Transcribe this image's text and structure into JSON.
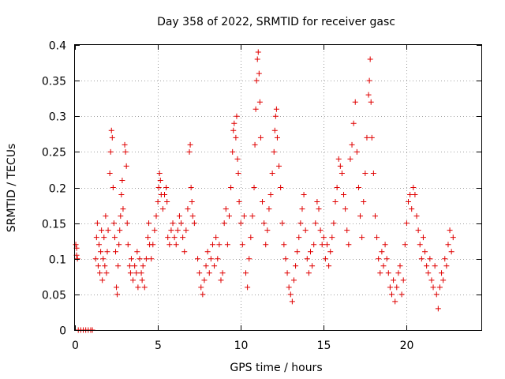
{
  "chart_data": {
    "type": "scatter",
    "title": "Day 358 of 2022, SRMTID for receiver gasc",
    "xlabel": "GPS time / hours",
    "ylabel": "SRMTID / TECUs",
    "xlim": [
      0,
      24.5
    ],
    "ylim": [
      0,
      0.4
    ],
    "xticks": [
      0,
      5,
      10,
      15,
      20
    ],
    "yticks": [
      0,
      0.05,
      0.1,
      0.15,
      0.2,
      0.25,
      0.3,
      0.35,
      0.4
    ],
    "xtick_labels": [
      "0",
      "5",
      "10",
      "15",
      "20"
    ],
    "ytick_labels": [
      "0",
      "0.05",
      "0.1",
      "0.15",
      "0.2",
      "0.25",
      "0.3",
      "0.35",
      "0.4"
    ],
    "grid": true,
    "marker": "+",
    "color": "#e00000",
    "series": [
      {
        "name": "SRMTID",
        "points": [
          [
            0.05,
            0.12
          ],
          [
            0.1,
            0.105
          ],
          [
            0.1,
            0.115
          ],
          [
            0.15,
            0.1
          ],
          [
            0.2,
            0.0
          ],
          [
            0.35,
            0.0
          ],
          [
            0.5,
            0.0
          ],
          [
            0.65,
            0.0
          ],
          [
            0.8,
            0.0
          ],
          [
            0.95,
            0.0
          ],
          [
            1.05,
            0.0
          ],
          [
            1.25,
            0.1
          ],
          [
            1.3,
            0.13
          ],
          [
            1.35,
            0.15
          ],
          [
            1.4,
            0.09
          ],
          [
            1.45,
            0.12
          ],
          [
            1.5,
            0.08
          ],
          [
            1.55,
            0.11
          ],
          [
            1.6,
            0.14
          ],
          [
            1.65,
            0.07
          ],
          [
            1.7,
            0.1
          ],
          [
            1.75,
            0.13
          ],
          [
            1.8,
            0.09
          ],
          [
            1.85,
            0.16
          ],
          [
            1.9,
            0.08
          ],
          [
            1.95,
            0.11
          ],
          [
            2.0,
            0.14
          ],
          [
            2.1,
            0.22
          ],
          [
            2.15,
            0.25
          ],
          [
            2.2,
            0.28
          ],
          [
            2.25,
            0.27
          ],
          [
            2.3,
            0.2
          ],
          [
            2.35,
            0.15
          ],
          [
            2.4,
            0.13
          ],
          [
            2.45,
            0.11
          ],
          [
            2.5,
            0.06
          ],
          [
            2.55,
            0.05
          ],
          [
            2.6,
            0.09
          ],
          [
            2.65,
            0.12
          ],
          [
            2.7,
            0.14
          ],
          [
            2.75,
            0.16
          ],
          [
            2.8,
            0.19
          ],
          [
            2.85,
            0.21
          ],
          [
            2.9,
            0.17
          ],
          [
            3.0,
            0.26
          ],
          [
            3.05,
            0.25
          ],
          [
            3.1,
            0.23
          ],
          [
            3.15,
            0.15
          ],
          [
            3.2,
            0.12
          ],
          [
            3.3,
            0.09
          ],
          [
            3.35,
            0.08
          ],
          [
            3.4,
            0.1
          ],
          [
            3.5,
            0.07
          ],
          [
            3.6,
            0.09
          ],
          [
            3.7,
            0.08
          ],
          [
            3.75,
            0.11
          ],
          [
            3.8,
            0.06
          ],
          [
            3.9,
            0.1
          ],
          [
            4.0,
            0.08
          ],
          [
            4.05,
            0.07
          ],
          [
            4.1,
            0.09
          ],
          [
            4.2,
            0.06
          ],
          [
            4.3,
            0.1
          ],
          [
            4.4,
            0.13
          ],
          [
            4.45,
            0.15
          ],
          [
            4.5,
            0.12
          ],
          [
            4.6,
            0.1
          ],
          [
            4.7,
            0.12
          ],
          [
            4.8,
            0.14
          ],
          [
            4.9,
            0.16
          ],
          [
            5.0,
            0.18
          ],
          [
            5.05,
            0.2
          ],
          [
            5.1,
            0.22
          ],
          [
            5.15,
            0.21
          ],
          [
            5.2,
            0.19
          ],
          [
            5.3,
            0.17
          ],
          [
            5.4,
            0.19
          ],
          [
            5.5,
            0.2
          ],
          [
            5.55,
            0.18
          ],
          [
            5.6,
            0.13
          ],
          [
            5.7,
            0.12
          ],
          [
            5.8,
            0.14
          ],
          [
            5.9,
            0.15
          ],
          [
            6.0,
            0.13
          ],
          [
            6.1,
            0.12
          ],
          [
            6.2,
            0.14
          ],
          [
            6.3,
            0.16
          ],
          [
            6.4,
            0.15
          ],
          [
            6.5,
            0.13
          ],
          [
            6.6,
            0.11
          ],
          [
            6.7,
            0.14
          ],
          [
            6.8,
            0.17
          ],
          [
            6.9,
            0.25
          ],
          [
            6.95,
            0.26
          ],
          [
            7.0,
            0.2
          ],
          [
            7.05,
            0.18
          ],
          [
            7.1,
            0.16
          ],
          [
            7.2,
            0.15
          ],
          [
            7.4,
            0.1
          ],
          [
            7.5,
            0.08
          ],
          [
            7.6,
            0.06
          ],
          [
            7.7,
            0.05
          ],
          [
            7.8,
            0.07
          ],
          [
            7.9,
            0.09
          ],
          [
            8.0,
            0.11
          ],
          [
            8.1,
            0.08
          ],
          [
            8.2,
            0.1
          ],
          [
            8.3,
            0.12
          ],
          [
            8.4,
            0.09
          ],
          [
            8.5,
            0.13
          ],
          [
            8.6,
            0.1
          ],
          [
            8.7,
            0.12
          ],
          [
            8.8,
            0.07
          ],
          [
            8.9,
            0.08
          ],
          [
            9.0,
            0.15
          ],
          [
            9.1,
            0.17
          ],
          [
            9.2,
            0.12
          ],
          [
            9.3,
            0.16
          ],
          [
            9.4,
            0.2
          ],
          [
            9.5,
            0.25
          ],
          [
            9.55,
            0.28
          ],
          [
            9.6,
            0.29
          ],
          [
            9.7,
            0.27
          ],
          [
            9.75,
            0.3
          ],
          [
            9.8,
            0.24
          ],
          [
            9.85,
            0.22
          ],
          [
            9.9,
            0.18
          ],
          [
            10.0,
            0.15
          ],
          [
            10.1,
            0.12
          ],
          [
            10.2,
            0.16
          ],
          [
            10.3,
            0.08
          ],
          [
            10.4,
            0.06
          ],
          [
            10.5,
            0.1
          ],
          [
            10.6,
            0.13
          ],
          [
            10.7,
            0.16
          ],
          [
            10.8,
            0.2
          ],
          [
            10.85,
            0.26
          ],
          [
            10.9,
            0.31
          ],
          [
            10.95,
            0.35
          ],
          [
            11.0,
            0.38
          ],
          [
            11.05,
            0.39
          ],
          [
            11.1,
            0.36
          ],
          [
            11.15,
            0.32
          ],
          [
            11.2,
            0.27
          ],
          [
            11.3,
            0.18
          ],
          [
            11.4,
            0.15
          ],
          [
            11.5,
            0.12
          ],
          [
            11.6,
            0.14
          ],
          [
            11.7,
            0.17
          ],
          [
            11.8,
            0.19
          ],
          [
            11.9,
            0.22
          ],
          [
            12.0,
            0.25
          ],
          [
            12.05,
            0.28
          ],
          [
            12.1,
            0.3
          ],
          [
            12.15,
            0.31
          ],
          [
            12.2,
            0.27
          ],
          [
            12.3,
            0.23
          ],
          [
            12.4,
            0.2
          ],
          [
            12.5,
            0.15
          ],
          [
            12.6,
            0.12
          ],
          [
            12.7,
            0.1
          ],
          [
            12.8,
            0.08
          ],
          [
            12.9,
            0.06
          ],
          [
            13.0,
            0.05
          ],
          [
            13.1,
            0.04
          ],
          [
            13.2,
            0.07
          ],
          [
            13.3,
            0.09
          ],
          [
            13.4,
            0.11
          ],
          [
            13.5,
            0.13
          ],
          [
            13.6,
            0.15
          ],
          [
            13.7,
            0.17
          ],
          [
            13.8,
            0.19
          ],
          [
            13.9,
            0.14
          ],
          [
            14.0,
            0.1
          ],
          [
            14.1,
            0.08
          ],
          [
            14.2,
            0.11
          ],
          [
            14.3,
            0.09
          ],
          [
            14.4,
            0.12
          ],
          [
            14.5,
            0.15
          ],
          [
            14.6,
            0.18
          ],
          [
            14.7,
            0.17
          ],
          [
            14.8,
            0.14
          ],
          [
            14.9,
            0.12
          ],
          [
            15.0,
            0.13
          ],
          [
            15.1,
            0.1
          ],
          [
            15.2,
            0.12
          ],
          [
            15.3,
            0.09
          ],
          [
            15.4,
            0.11
          ],
          [
            15.5,
            0.13
          ],
          [
            15.6,
            0.15
          ],
          [
            15.7,
            0.18
          ],
          [
            15.8,
            0.2
          ],
          [
            15.9,
            0.24
          ],
          [
            16.0,
            0.23
          ],
          [
            16.1,
            0.22
          ],
          [
            16.2,
            0.19
          ],
          [
            16.3,
            0.17
          ],
          [
            16.4,
            0.14
          ],
          [
            16.5,
            0.12
          ],
          [
            16.6,
            0.24
          ],
          [
            16.7,
            0.26
          ],
          [
            16.8,
            0.29
          ],
          [
            16.9,
            0.32
          ],
          [
            17.0,
            0.25
          ],
          [
            17.1,
            0.2
          ],
          [
            17.2,
            0.16
          ],
          [
            17.3,
            0.13
          ],
          [
            17.4,
            0.18
          ],
          [
            17.5,
            0.22
          ],
          [
            17.6,
            0.27
          ],
          [
            17.7,
            0.33
          ],
          [
            17.75,
            0.35
          ],
          [
            17.8,
            0.38
          ],
          [
            17.85,
            0.32
          ],
          [
            17.9,
            0.27
          ],
          [
            18.0,
            0.22
          ],
          [
            18.1,
            0.16
          ],
          [
            18.2,
            0.13
          ],
          [
            18.3,
            0.1
          ],
          [
            18.4,
            0.08
          ],
          [
            18.5,
            0.11
          ],
          [
            18.6,
            0.09
          ],
          [
            18.7,
            0.12
          ],
          [
            18.8,
            0.1
          ],
          [
            18.9,
            0.08
          ],
          [
            19.0,
            0.06
          ],
          [
            19.1,
            0.05
          ],
          [
            19.2,
            0.07
          ],
          [
            19.3,
            0.04
          ],
          [
            19.4,
            0.06
          ],
          [
            19.5,
            0.08
          ],
          [
            19.6,
            0.09
          ],
          [
            19.7,
            0.05
          ],
          [
            19.8,
            0.07
          ],
          [
            19.9,
            0.12
          ],
          [
            20.0,
            0.15
          ],
          [
            20.1,
            0.18
          ],
          [
            20.2,
            0.19
          ],
          [
            20.3,
            0.17
          ],
          [
            20.4,
            0.2
          ],
          [
            20.5,
            0.19
          ],
          [
            20.6,
            0.16
          ],
          [
            20.7,
            0.14
          ],
          [
            20.8,
            0.12
          ],
          [
            20.9,
            0.1
          ],
          [
            21.0,
            0.13
          ],
          [
            21.1,
            0.11
          ],
          [
            21.2,
            0.09
          ],
          [
            21.3,
            0.08
          ],
          [
            21.4,
            0.1
          ],
          [
            21.5,
            0.07
          ],
          [
            21.6,
            0.06
          ],
          [
            21.7,
            0.09
          ],
          [
            21.8,
            0.05
          ],
          [
            21.9,
            0.03
          ],
          [
            22.0,
            0.06
          ],
          [
            22.1,
            0.08
          ],
          [
            22.2,
            0.07
          ],
          [
            22.3,
            0.1
          ],
          [
            22.4,
            0.09
          ],
          [
            22.5,
            0.12
          ],
          [
            22.6,
            0.14
          ],
          [
            22.7,
            0.11
          ],
          [
            22.8,
            0.13
          ]
        ]
      }
    ]
  }
}
